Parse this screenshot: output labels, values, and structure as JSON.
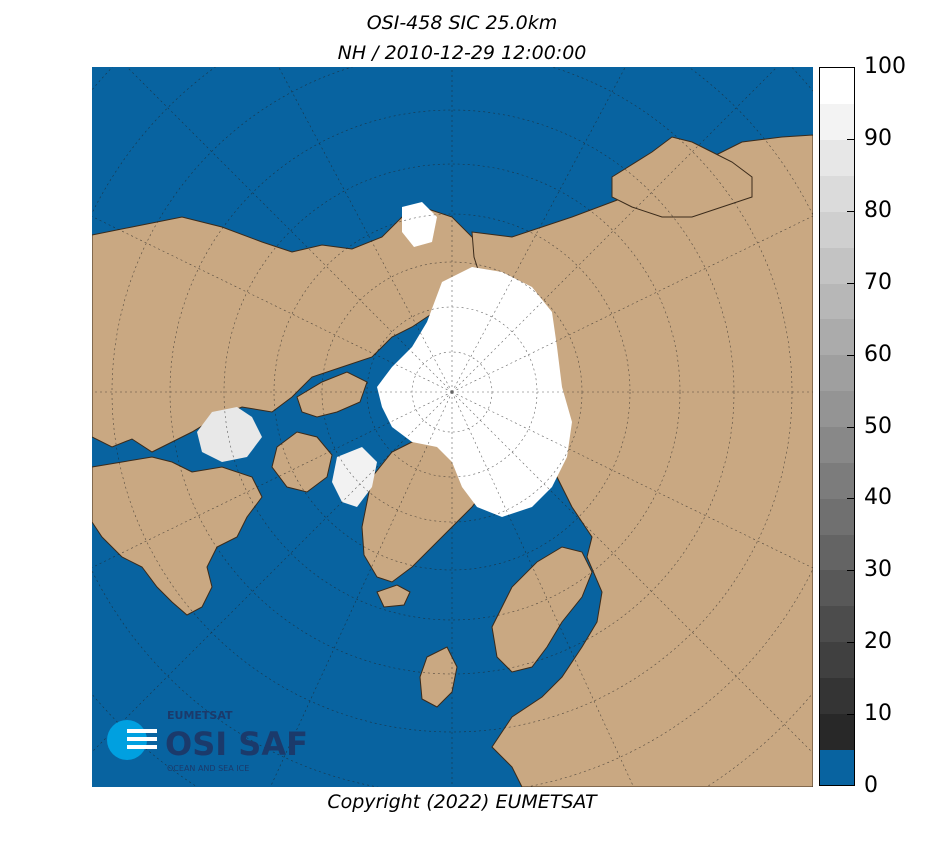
{
  "title": {
    "line1": "OSI-458 SIC 25.0km",
    "line2": "NH / 2010-12-29 12:00:00"
  },
  "copyright": "Copyright (2022)  EUMETSAT",
  "logo": {
    "brand": "EUMETSAT",
    "name": "OSI SAF",
    "tagline": "OCEAN AND SEA ICE"
  },
  "colors": {
    "ocean": "#0863a0",
    "land": "#c9a882",
    "ice": "#ffffff",
    "logo": "#1b3a6b",
    "logo_accent": "#00a0e0"
  },
  "colorbar": {
    "min": 0,
    "max": 100,
    "ticks": [
      "0",
      "10",
      "20",
      "30",
      "40",
      "50",
      "60",
      "70",
      "80",
      "90",
      "100"
    ]
  }
}
